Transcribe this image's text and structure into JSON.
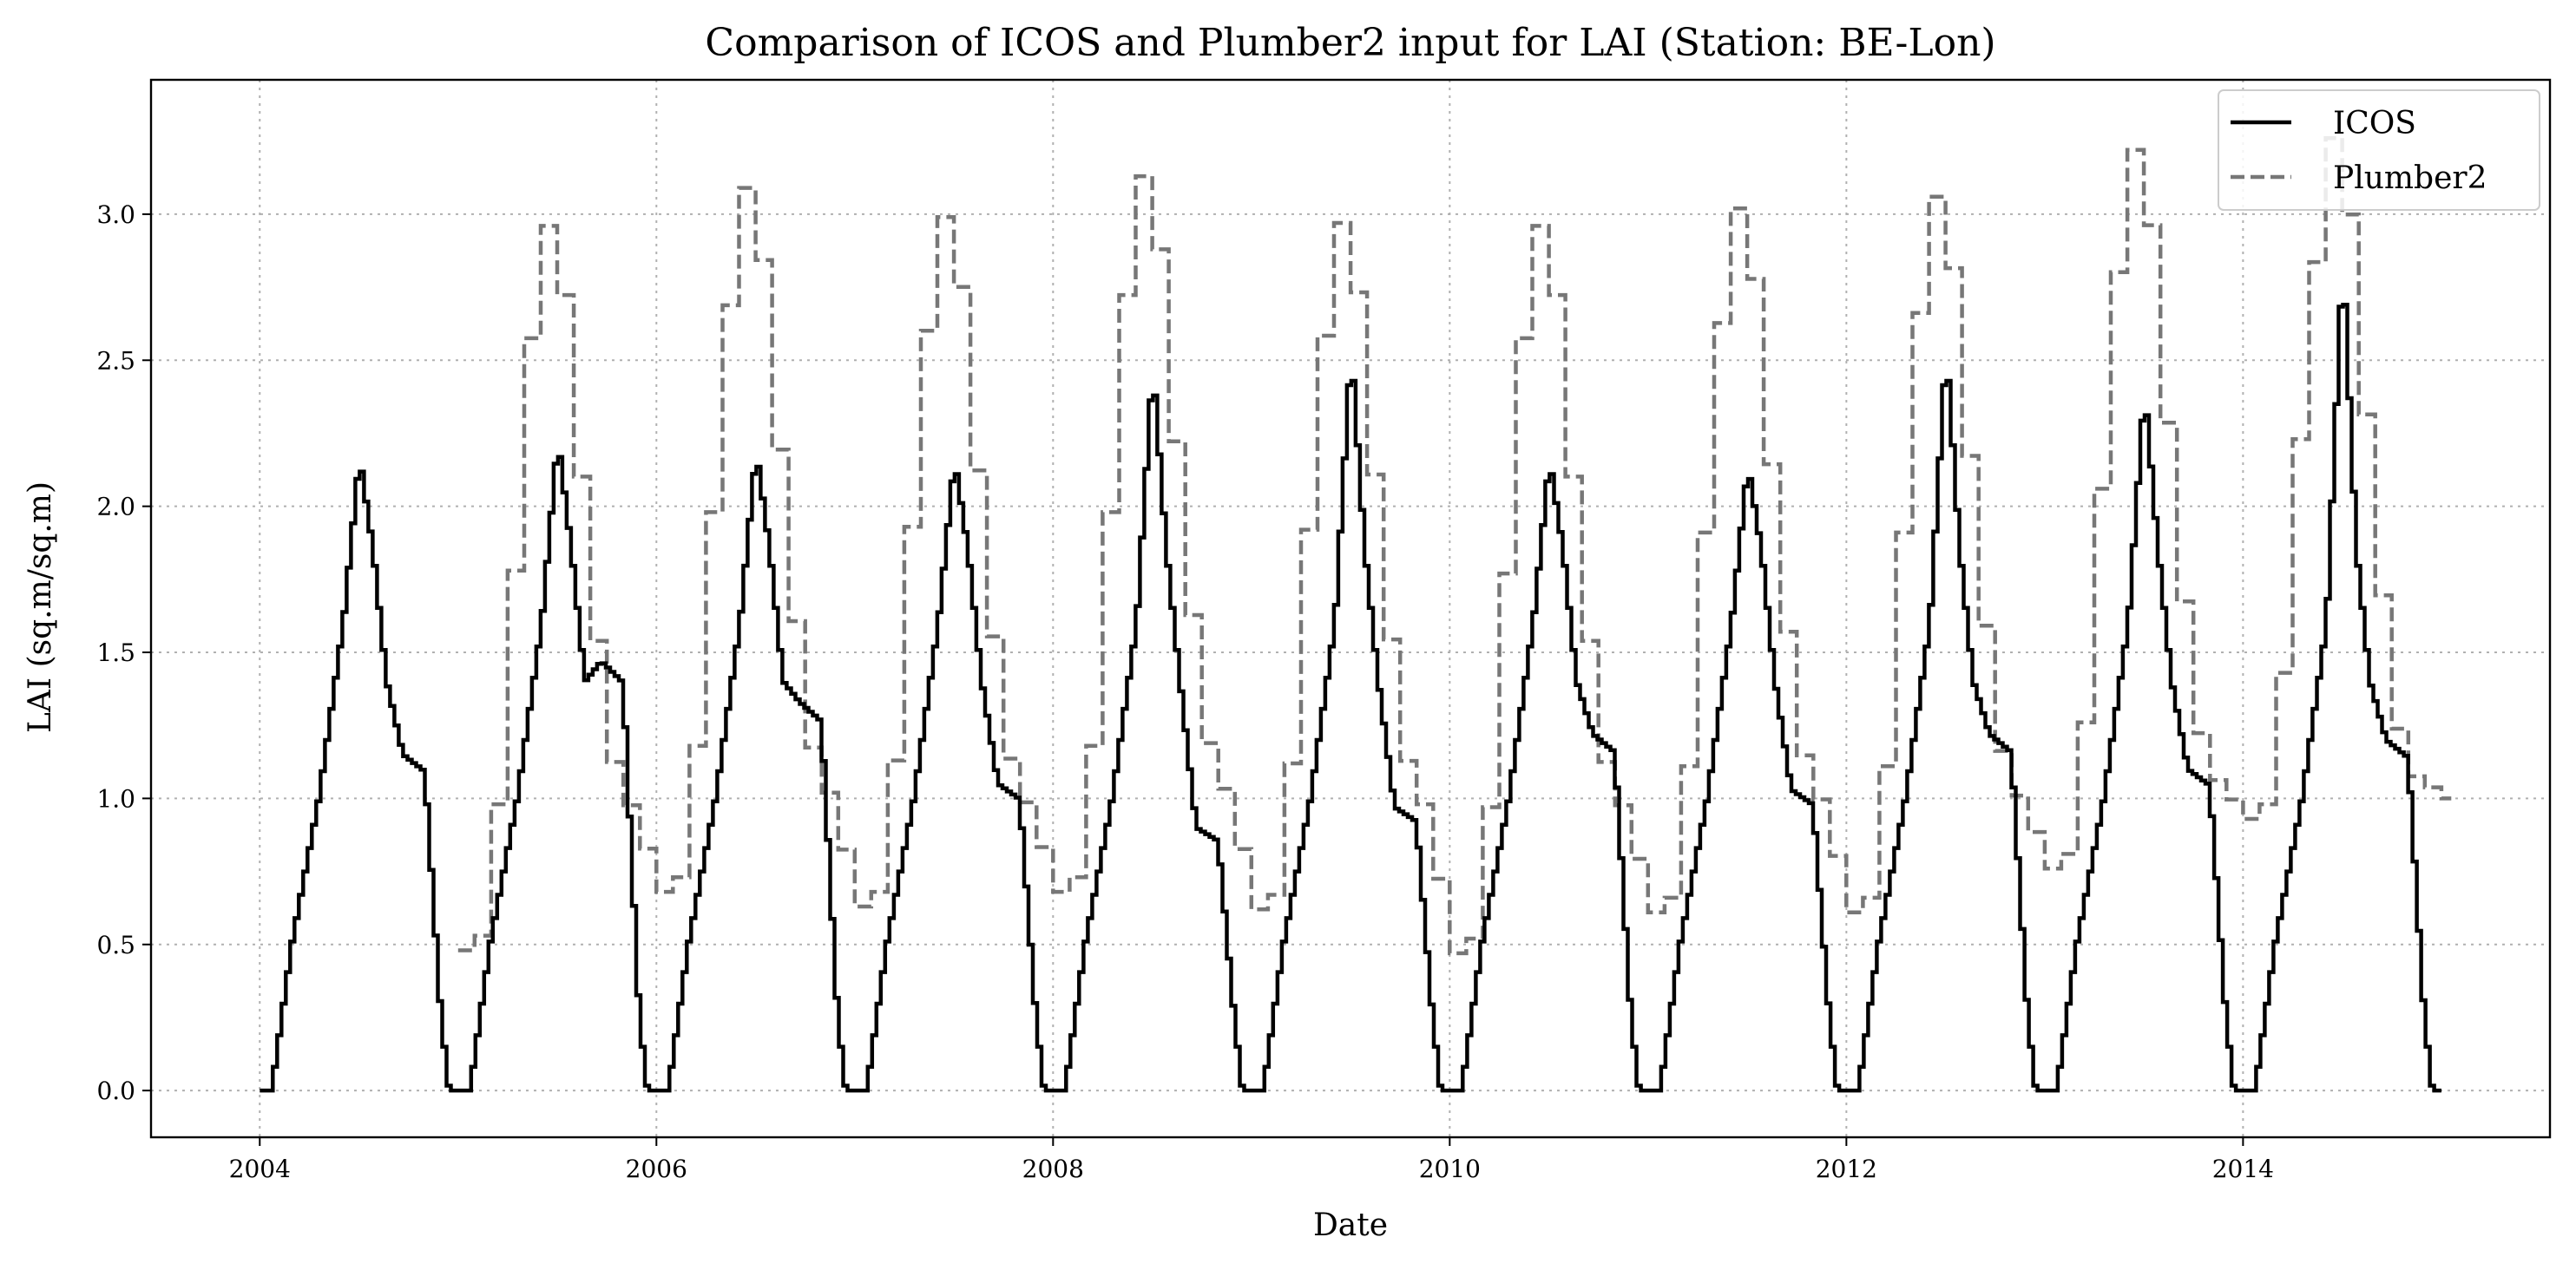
{
  "chart_data": {
    "type": "line",
    "title": "Comparison of ICOS and Plumber2 input for LAI (Station: BE-Lon)",
    "xlabel": "Date",
    "ylabel": "LAI (sq.m/sq.m)",
    "x_ticks": [
      "2004",
      "2006",
      "2008",
      "2010",
      "2012",
      "2014"
    ],
    "y_ticks": [
      "0.0",
      "0.5",
      "1.0",
      "1.5",
      "2.0",
      "2.5",
      "3.0"
    ],
    "xlim": [
      "2003-06-15",
      "2015-07-20"
    ],
    "ylim": [
      -0.16,
      3.46
    ],
    "grid": true,
    "legend": "top-right",
    "series": [
      {
        "name": "ICOS",
        "color": "#000000",
        "style": "solid",
        "peaks": [
          2.17,
          2.23,
          2.19,
          2.16,
          2.48,
          2.54,
          2.16,
          2.14,
          2.54,
          2.4,
          2.85
        ],
        "autumn_shoulder": [
          1.15,
          1.47,
          1.33,
          1.05,
          0.9,
          0.97,
          1.22,
          1.03,
          1.22,
          1.1,
          1.2
        ]
      },
      {
        "name": "Plumber2",
        "color": "#777777",
        "style": "dashed",
        "peaks": [
          2.96,
          3.09,
          2.99,
          3.13,
          2.97,
          2.96,
          3.02,
          3.06,
          3.22,
          3.26
        ],
        "winter_minima": [
          0.48,
          0.68,
          0.63,
          0.68,
          0.62,
          0.47,
          0.61,
          0.61,
          0.76,
          0.93,
          1.0
        ]
      }
    ]
  }
}
